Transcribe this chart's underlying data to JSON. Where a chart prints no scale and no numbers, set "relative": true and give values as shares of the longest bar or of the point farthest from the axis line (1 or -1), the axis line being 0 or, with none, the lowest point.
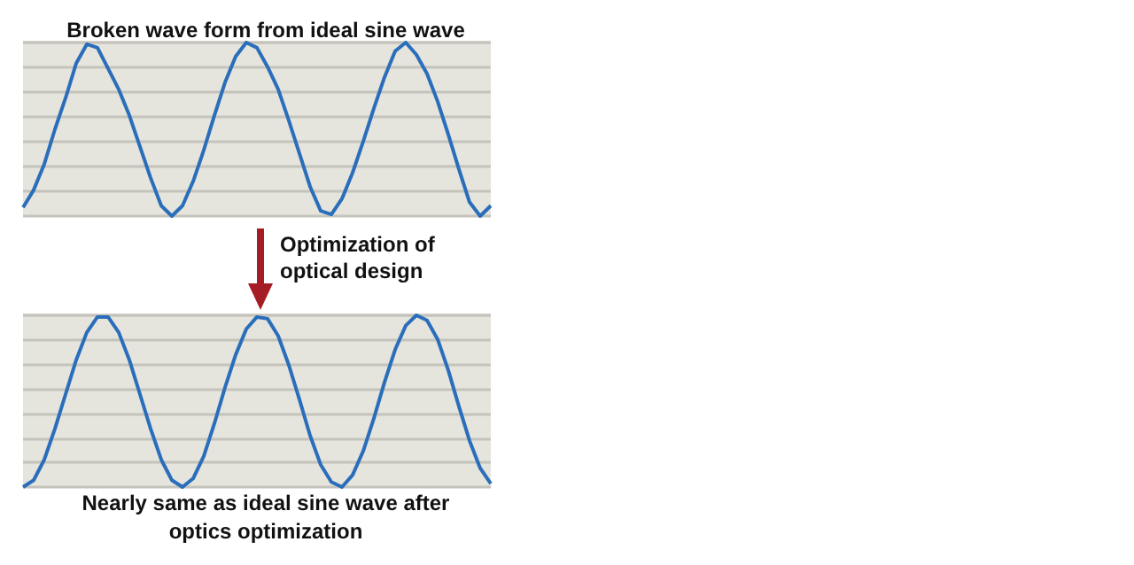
{
  "chart_data": [
    {
      "type": "line",
      "title": "Broken wave form from ideal sine wave",
      "annotations": [
        "Optimization of\noptical design"
      ],
      "relative": true,
      "grid": "y",
      "categories": [
        null,
        null,
        null,
        null,
        null,
        null,
        null,
        null,
        null,
        null,
        null,
        null,
        null,
        null,
        null,
        null,
        null,
        null,
        null,
        null,
        null,
        null,
        null,
        null,
        null,
        null,
        null,
        null,
        null,
        null,
        null,
        null,
        null,
        null,
        null,
        null,
        null,
        null,
        null,
        null,
        null,
        null,
        null,
        null,
        null
      ],
      "series": [
        {
          "color": "#2a6ebb",
          "values": [
            0.05,
            0.15,
            0.3,
            0.5,
            0.68,
            0.88,
            0.99,
            0.97,
            0.85,
            0.73,
            0.58,
            0.4,
            0.22,
            0.06,
            0.0,
            0.06,
            0.2,
            0.38,
            0.58,
            0.77,
            0.92,
            1.0,
            0.97,
            0.86,
            0.73,
            0.55,
            0.36,
            0.17,
            0.03,
            0.01,
            0.1,
            0.25,
            0.43,
            0.62,
            0.8,
            0.95,
            1.0,
            0.93,
            0.82,
            0.66,
            0.47,
            0.27,
            0.08,
            0.0,
            0.06
          ]
        }
      ]
    },
    {
      "type": "line",
      "title": "Nearly same as ideal sine wave after\noptics optimization",
      "relative": true,
      "grid": "y",
      "categories": [
        null,
        null,
        null,
        null,
        null,
        null,
        null,
        null,
        null,
        null,
        null,
        null,
        null,
        null,
        null,
        null,
        null,
        null,
        null,
        null,
        null,
        null,
        null,
        null,
        null,
        null,
        null,
        null,
        null,
        null,
        null,
        null,
        null,
        null,
        null,
        null,
        null,
        null,
        null,
        null,
        null,
        null,
        null,
        null,
        null
      ],
      "series": [
        {
          "color": "#2a6ebb",
          "values": [
            0.0,
            0.04,
            0.16,
            0.34,
            0.54,
            0.74,
            0.9,
            0.99,
            0.99,
            0.9,
            0.74,
            0.54,
            0.34,
            0.16,
            0.04,
            0.0,
            0.05,
            0.18,
            0.37,
            0.58,
            0.77,
            0.92,
            0.99,
            0.98,
            0.88,
            0.71,
            0.51,
            0.3,
            0.13,
            0.03,
            0.0,
            0.07,
            0.21,
            0.4,
            0.61,
            0.8,
            0.94,
            1.0,
            0.97,
            0.86,
            0.68,
            0.47,
            0.27,
            0.11,
            0.02
          ]
        }
      ]
    }
  ]
}
